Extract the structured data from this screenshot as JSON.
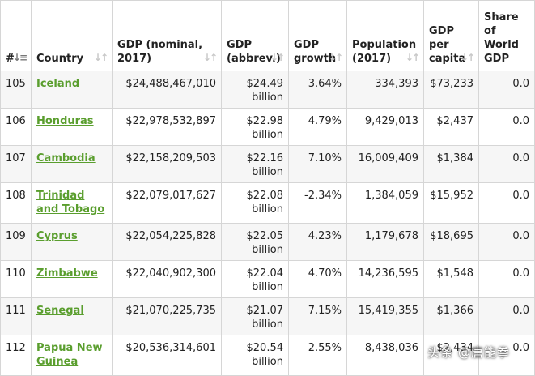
{
  "table": {
    "headers": [
      {
        "key": "rank",
        "label": "#"
      },
      {
        "key": "country",
        "label": "Country"
      },
      {
        "key": "gdp_nominal",
        "label": "GDP (nominal, 2017)"
      },
      {
        "key": "gdp_abbrev",
        "label": "GDP (abbrev.)"
      },
      {
        "key": "gdp_growth",
        "label": "GDP growth"
      },
      {
        "key": "population",
        "label": "Population (2017)"
      },
      {
        "key": "gdp_per_capita",
        "label": "GDP per capita"
      },
      {
        "key": "share_world",
        "label": "Share of World GDP"
      }
    ],
    "sort_icons": {
      "active": "sort-numeric-icon",
      "inactive": "sort-arrows-icon"
    },
    "rows": [
      {
        "rank": "105",
        "country": "Iceland",
        "gdp_nominal": "$24,488,467,010",
        "gdp_abbrev": "$24.49 billion",
        "gdp_growth": "3.64%",
        "population": "334,393",
        "gdp_per_capita": "$73,233",
        "share_world": "0.0"
      },
      {
        "rank": "106",
        "country": "Honduras",
        "gdp_nominal": "$22,978,532,897",
        "gdp_abbrev": "$22.98 billion",
        "gdp_growth": "4.79%",
        "population": "9,429,013",
        "gdp_per_capita": "$2,437",
        "share_world": "0.0"
      },
      {
        "rank": "107",
        "country": "Cambodia",
        "gdp_nominal": "$22,158,209,503",
        "gdp_abbrev": "$22.16 billion",
        "gdp_growth": "7.10%",
        "population": "16,009,409",
        "gdp_per_capita": "$1,384",
        "share_world": "0.0"
      },
      {
        "rank": "108",
        "country": "Trinidad and Tobago",
        "gdp_nominal": "$22,079,017,627",
        "gdp_abbrev": "$22.08 billion",
        "gdp_growth": "-2.34%",
        "population": "1,384,059",
        "gdp_per_capita": "$15,952",
        "share_world": "0.0"
      },
      {
        "rank": "109",
        "country": "Cyprus",
        "gdp_nominal": "$22,054,225,828",
        "gdp_abbrev": "$22.05 billion",
        "gdp_growth": "4.23%",
        "population": "1,179,678",
        "gdp_per_capita": "$18,695",
        "share_world": "0.0"
      },
      {
        "rank": "110",
        "country": "Zimbabwe",
        "gdp_nominal": "$22,040,902,300",
        "gdp_abbrev": "$22.04 billion",
        "gdp_growth": "4.70%",
        "population": "14,236,595",
        "gdp_per_capita": "$1,548",
        "share_world": "0.0"
      },
      {
        "rank": "111",
        "country": "Senegal",
        "gdp_nominal": "$21,070,225,735",
        "gdp_abbrev": "$21.07 billion",
        "gdp_growth": "7.15%",
        "population": "15,419,355",
        "gdp_per_capita": "$1,366",
        "share_world": "0.0"
      },
      {
        "rank": "112",
        "country": "Papua New Guinea",
        "gdp_nominal": "$20,536,314,601",
        "gdp_abbrev": "$20.54 billion",
        "gdp_growth": "2.55%",
        "population": "8,438,036",
        "gdp_per_capita": "$2,434",
        "share_world": "0.0"
      }
    ]
  },
  "watermark": "头条 @唐能拳",
  "colors": {
    "link": "#5a9e2e",
    "row_alt": "#f6f6f6",
    "border": "#d6d6d6"
  }
}
